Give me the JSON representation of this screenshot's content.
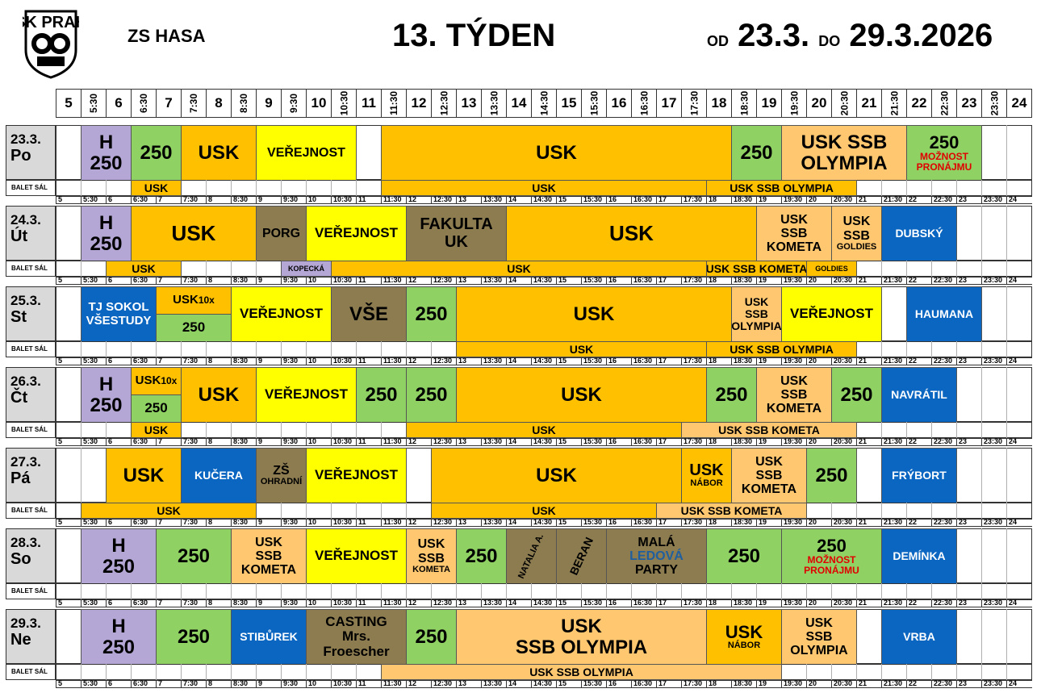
{
  "header": {
    "logo_text": "USK PRAHA",
    "rink": "ZS HASA",
    "week": "13. TÝDEN",
    "from_label": "OD",
    "from_date": "23.3.",
    "to_label": "DO",
    "to_date": "29.3.2026",
    "balet_label": "BALET SÁL"
  },
  "time_labels": [
    "5",
    "5:30",
    "6",
    "6:30",
    "7",
    "7:30",
    "8",
    "8:30",
    "9",
    "9:30",
    "10",
    "10:30",
    "11",
    "11:30",
    "12",
    "12:30",
    "13",
    "13:30",
    "14",
    "14:30",
    "15",
    "15:30",
    "16",
    "16:30",
    "17",
    "17:30",
    "18",
    "18:30",
    "19",
    "19:30",
    "20",
    "20:30",
    "21",
    "21:30",
    "22",
    "22:30",
    "23",
    "23:30",
    "24"
  ],
  "colors": {
    "lilac": "#b4a7d6",
    "green": "#8fd163",
    "orange": "#ffc000",
    "yellow": "#ffff00",
    "lightorange": "#ffc870",
    "olive": "#8c7c50",
    "blue": "#0b66c2",
    "header_gray": "#d9d9d9"
  },
  "days": [
    {
      "date": "23.3.",
      "name": "Po",
      "blocks": [
        {
          "s": 1,
          "e": 3,
          "color": "lilac",
          "lines": [
            "H",
            "250"
          ],
          "fs": 24
        },
        {
          "s": 3,
          "e": 5,
          "color": "green",
          "lines": [
            "250"
          ],
          "fs": 24
        },
        {
          "s": 5,
          "e": 8,
          "color": "orange",
          "lines": [
            "USK"
          ],
          "fs": 24
        },
        {
          "s": 8,
          "e": 12,
          "color": "yellow",
          "lines": [
            "VEŘEJNOST"
          ],
          "fs": 16
        },
        {
          "s": 13,
          "e": 27,
          "color": "orange",
          "lines": [
            "USK"
          ],
          "fs": 24
        },
        {
          "s": 27,
          "e": 29,
          "color": "green",
          "lines": [
            "250"
          ],
          "fs": 24
        },
        {
          "s": 29,
          "e": 34,
          "color": "lightorange",
          "lines": [
            "USK  SSB",
            "OLYMPIA"
          ],
          "fs": 24
        },
        {
          "s": 34,
          "e": 37,
          "color": "green",
          "lines": [
            "250"
          ],
          "fs": 22,
          "red": [
            "MOŽNOST",
            "PRONÁJMU"
          ]
        }
      ],
      "balet": [
        {
          "s": 3,
          "e": 5,
          "color": "orange",
          "text": "USK"
        },
        {
          "s": 13,
          "e": 26,
          "color": "orange",
          "text": "USK"
        },
        {
          "s": 26,
          "e": 32,
          "color": "orange",
          "text": "USK SSB OLYMPIA"
        }
      ]
    },
    {
      "date": "24.3.",
      "name": "Út",
      "blocks": [
        {
          "s": 1,
          "e": 3,
          "color": "lilac",
          "lines": [
            "H",
            "250"
          ],
          "fs": 24
        },
        {
          "s": 3,
          "e": 8,
          "color": "orange",
          "lines": [
            "USK"
          ],
          "fs": 26
        },
        {
          "s": 8,
          "e": 10,
          "color": "olive",
          "lines": [
            "PORG"
          ],
          "fs": 16
        },
        {
          "s": 10,
          "e": 14,
          "color": "yellow",
          "lines": [
            "VEŘEJNOST"
          ],
          "fs": 17
        },
        {
          "s": 14,
          "e": 18,
          "color": "olive",
          "lines": [
            "FAKULTA",
            "UK"
          ],
          "fs": 20
        },
        {
          "s": 18,
          "e": 28,
          "color": "orange",
          "lines": [
            "USK"
          ],
          "fs": 26
        },
        {
          "s": 28,
          "e": 31,
          "color": "lightorange",
          "lines": [
            "USK",
            "SSB",
            "KOMETA"
          ],
          "fs": 16
        },
        {
          "s": 31,
          "e": 33,
          "color": "lightorange",
          "lines": [
            "USK",
            "SSB"
          ],
          "fs": 16,
          "sub": "GOLDIES"
        },
        {
          "s": 33,
          "e": 36,
          "color": "blue",
          "lines": [
            "DUBSKÝ"
          ],
          "fs": 14,
          "textColor": "#fff"
        }
      ],
      "balet": [
        {
          "s": 2,
          "e": 5,
          "color": "orange",
          "text": "USK"
        },
        {
          "s": 9,
          "e": 11,
          "color": "lilac",
          "text": "KOPECKÁ",
          "small": true
        },
        {
          "s": 11,
          "e": 26,
          "color": "orange",
          "text": "USK"
        },
        {
          "s": 26,
          "e": 30,
          "color": "orange",
          "text": "USK SSB KOMETA"
        },
        {
          "s": 30,
          "e": 32,
          "color": "orange",
          "text": "GOLDIES",
          "small": true
        }
      ]
    },
    {
      "date": "25.3.",
      "name": "St",
      "blocks": [
        {
          "s": 1,
          "e": 4,
          "color": "blue",
          "lines": [
            "TJ SOKOL",
            "VŠESTUDY"
          ],
          "fs": 15,
          "textColor": "#fff"
        },
        {
          "s": 4,
          "e": 7,
          "color": "orange",
          "lines": [
            "USK"
          ],
          "fs": 15,
          "suffix": "10x",
          "half": "top"
        },
        {
          "s": 4,
          "e": 7,
          "color": "green",
          "lines": [
            "250"
          ],
          "fs": 17,
          "half": "bottom"
        },
        {
          "s": 7,
          "e": 11,
          "color": "yellow",
          "lines": [
            "VEŘEJNOST"
          ],
          "fs": 17
        },
        {
          "s": 11,
          "e": 14,
          "color": "olive",
          "lines": [
            "VŠE"
          ],
          "fs": 24
        },
        {
          "s": 14,
          "e": 16,
          "color": "green",
          "lines": [
            "250"
          ],
          "fs": 24
        },
        {
          "s": 16,
          "e": 27,
          "color": "orange",
          "lines": [
            "USK"
          ],
          "fs": 24
        },
        {
          "s": 27,
          "e": 29,
          "color": "lightorange",
          "lines": [
            "USK",
            "SSB",
            "OLYMPIA"
          ],
          "fs": 14
        },
        {
          "s": 29,
          "e": 33,
          "color": "yellow",
          "lines": [
            "VEŘEJNOST"
          ],
          "fs": 17
        },
        {
          "s": 34,
          "e": 37,
          "color": "blue",
          "lines": [
            "HAUMANA"
          ],
          "fs": 14,
          "textColor": "#fff"
        }
      ],
      "balet": [
        {
          "s": 16,
          "e": 26,
          "color": "orange",
          "text": "USK"
        },
        {
          "s": 26,
          "e": 32,
          "color": "orange",
          "text": "USK SSB OLYMPIA"
        }
      ]
    },
    {
      "date": "26.3.",
      "name": "Čt",
      "blocks": [
        {
          "s": 1,
          "e": 3,
          "color": "lilac",
          "lines": [
            "H",
            "250"
          ],
          "fs": 24
        },
        {
          "s": 3,
          "e": 5,
          "color": "orange",
          "lines": [
            "USK"
          ],
          "fs": 15,
          "suffix": "10x",
          "half": "top"
        },
        {
          "s": 3,
          "e": 5,
          "color": "green",
          "lines": [
            "250"
          ],
          "fs": 17,
          "half": "bottom"
        },
        {
          "s": 5,
          "e": 8,
          "color": "orange",
          "lines": [
            "USK"
          ],
          "fs": 24
        },
        {
          "s": 8,
          "e": 12,
          "color": "yellow",
          "lines": [
            "VEŘEJNOST"
          ],
          "fs": 17
        },
        {
          "s": 12,
          "e": 14,
          "color": "green",
          "lines": [
            "250"
          ],
          "fs": 24
        },
        {
          "s": 14,
          "e": 16,
          "color": "green",
          "lines": [
            "250"
          ],
          "fs": 24
        },
        {
          "s": 16,
          "e": 26,
          "color": "orange",
          "lines": [
            "USK"
          ],
          "fs": 24
        },
        {
          "s": 26,
          "e": 28,
          "color": "green",
          "lines": [
            "250"
          ],
          "fs": 24
        },
        {
          "s": 28,
          "e": 31,
          "color": "lightorange",
          "lines": [
            "USK",
            "SSB",
            "KOMETA"
          ],
          "fs": 16
        },
        {
          "s": 31,
          "e": 33,
          "color": "green",
          "lines": [
            "250"
          ],
          "fs": 24
        },
        {
          "s": 33,
          "e": 36,
          "color": "blue",
          "lines": [
            "NAVRÁTIL"
          ],
          "fs": 14,
          "textColor": "#fff"
        }
      ],
      "balet": [
        {
          "s": 3,
          "e": 5,
          "color": "orange",
          "text": "USK"
        },
        {
          "s": 14,
          "e": 25,
          "color": "orange",
          "text": "USK"
        },
        {
          "s": 25,
          "e": 32,
          "color": "lightorange",
          "text": "USK SSB KOMETA"
        }
      ]
    },
    {
      "date": "27.3.",
      "name": "Pá",
      "blocks": [
        {
          "s": 2,
          "e": 5,
          "color": "orange",
          "lines": [
            "USK"
          ],
          "fs": 24
        },
        {
          "s": 5,
          "e": 8,
          "color": "blue",
          "lines": [
            "KUČERA"
          ],
          "fs": 14,
          "textColor": "#fff"
        },
        {
          "s": 8,
          "e": 10,
          "color": "olive",
          "lines": [
            "ZŠ"
          ],
          "fs": 16,
          "sub": "OHRADNÍ"
        },
        {
          "s": 10,
          "e": 14,
          "color": "yellow",
          "lines": [
            "VEŘEJNOST"
          ],
          "fs": 17
        },
        {
          "s": 15,
          "e": 25,
          "color": "orange",
          "lines": [
            "USK"
          ],
          "fs": 24
        },
        {
          "s": 25,
          "e": 27,
          "color": "orange",
          "lines": [
            "USK"
          ],
          "fs": 20,
          "sub": "NÁBOR"
        },
        {
          "s": 27,
          "e": 30,
          "color": "lightorange",
          "lines": [
            "USK",
            "SSB",
            "KOMETA"
          ],
          "fs": 16
        },
        {
          "s": 30,
          "e": 32,
          "color": "green",
          "lines": [
            "250"
          ],
          "fs": 24
        },
        {
          "s": 33,
          "e": 36,
          "color": "blue",
          "lines": [
            "FRÝBORT"
          ],
          "fs": 14,
          "textColor": "#fff"
        }
      ],
      "balet": [
        {
          "s": 1,
          "e": 8,
          "color": "orange",
          "text": "USK"
        },
        {
          "s": 15,
          "e": 24,
          "color": "orange",
          "text": "USK"
        },
        {
          "s": 24,
          "e": 30,
          "color": "lightorange",
          "text": "USK SSB KOMETA"
        }
      ]
    },
    {
      "date": "28.3.",
      "name": "So",
      "blocks": [
        {
          "s": 1,
          "e": 4,
          "color": "lilac",
          "lines": [
            "H",
            "250"
          ],
          "fs": 24
        },
        {
          "s": 4,
          "e": 7,
          "color": "green",
          "lines": [
            "250"
          ],
          "fs": 24
        },
        {
          "s": 7,
          "e": 10,
          "color": "lightorange",
          "lines": [
            "USK",
            "SSB",
            "KOMETA"
          ],
          "fs": 16
        },
        {
          "s": 10,
          "e": 14,
          "color": "yellow",
          "lines": [
            "VEŘEJNOST"
          ],
          "fs": 17
        },
        {
          "s": 14,
          "e": 16,
          "color": "lightorange",
          "lines": [
            "USK",
            "SSB"
          ],
          "fs": 16,
          "sub": "KOMETA"
        },
        {
          "s": 16,
          "e": 18,
          "color": "green",
          "lines": [
            "250"
          ],
          "fs": 24
        },
        {
          "s": 18,
          "e": 20,
          "color": "olive",
          "lines": [
            "NATALIA A."
          ],
          "fs": 11,
          "rotate": true
        },
        {
          "s": 20,
          "e": 22,
          "color": "olive",
          "lines": [
            "BERAN"
          ],
          "fs": 14,
          "rotate": true
        },
        {
          "s": 22,
          "e": 26,
          "color": "olive",
          "lines": [
            "MALÁ"
          ],
          "fs": 16,
          "blue": "LEDOVÁ",
          "after": "PARTY"
        },
        {
          "s": 26,
          "e": 29,
          "color": "green",
          "lines": [
            "250"
          ],
          "fs": 24
        },
        {
          "s": 29,
          "e": 33,
          "color": "green",
          "lines": [
            "250"
          ],
          "fs": 22,
          "red": [
            "MOŽNOST",
            "PRONÁJMU"
          ]
        },
        {
          "s": 33,
          "e": 36,
          "color": "blue",
          "lines": [
            "DEMÍNKA"
          ],
          "fs": 14,
          "textColor": "#fff"
        }
      ],
      "balet": []
    },
    {
      "date": "29.3.",
      "name": "Ne",
      "blocks": [
        {
          "s": 1,
          "e": 4,
          "color": "lilac",
          "lines": [
            "H",
            "250"
          ],
          "fs": 24
        },
        {
          "s": 4,
          "e": 7,
          "color": "green",
          "lines": [
            "250"
          ],
          "fs": 24
        },
        {
          "s": 7,
          "e": 10,
          "color": "blue",
          "lines": [
            "STIBŮREK"
          ],
          "fs": 14,
          "textColor": "#fff"
        },
        {
          "s": 10,
          "e": 14,
          "color": "olive",
          "lines": [
            "CASTING",
            "Mrs.",
            "Froescher"
          ],
          "fs": 17
        },
        {
          "s": 14,
          "e": 16,
          "color": "green",
          "lines": [
            "250"
          ],
          "fs": 24
        },
        {
          "s": 16,
          "e": 26,
          "color": "lightorange",
          "lines": [
            "USK",
            "SSB OLYMPIA"
          ],
          "fs": 24
        },
        {
          "s": 26,
          "e": 29,
          "color": "orange",
          "lines": [
            "USK"
          ],
          "fs": 22,
          "sub": "NÁBOR"
        },
        {
          "s": 29,
          "e": 32,
          "color": "lightorange",
          "lines": [
            "USK",
            "SSB",
            "OLYMPIA"
          ],
          "fs": 16
        },
        {
          "s": 33,
          "e": 36,
          "color": "blue",
          "lines": [
            "VRBA"
          ],
          "fs": 14,
          "textColor": "#fff"
        }
      ],
      "balet": [
        {
          "s": 13,
          "e": 29,
          "color": "lightorange",
          "text": "USK SSB OLYMPIA"
        }
      ]
    }
  ]
}
